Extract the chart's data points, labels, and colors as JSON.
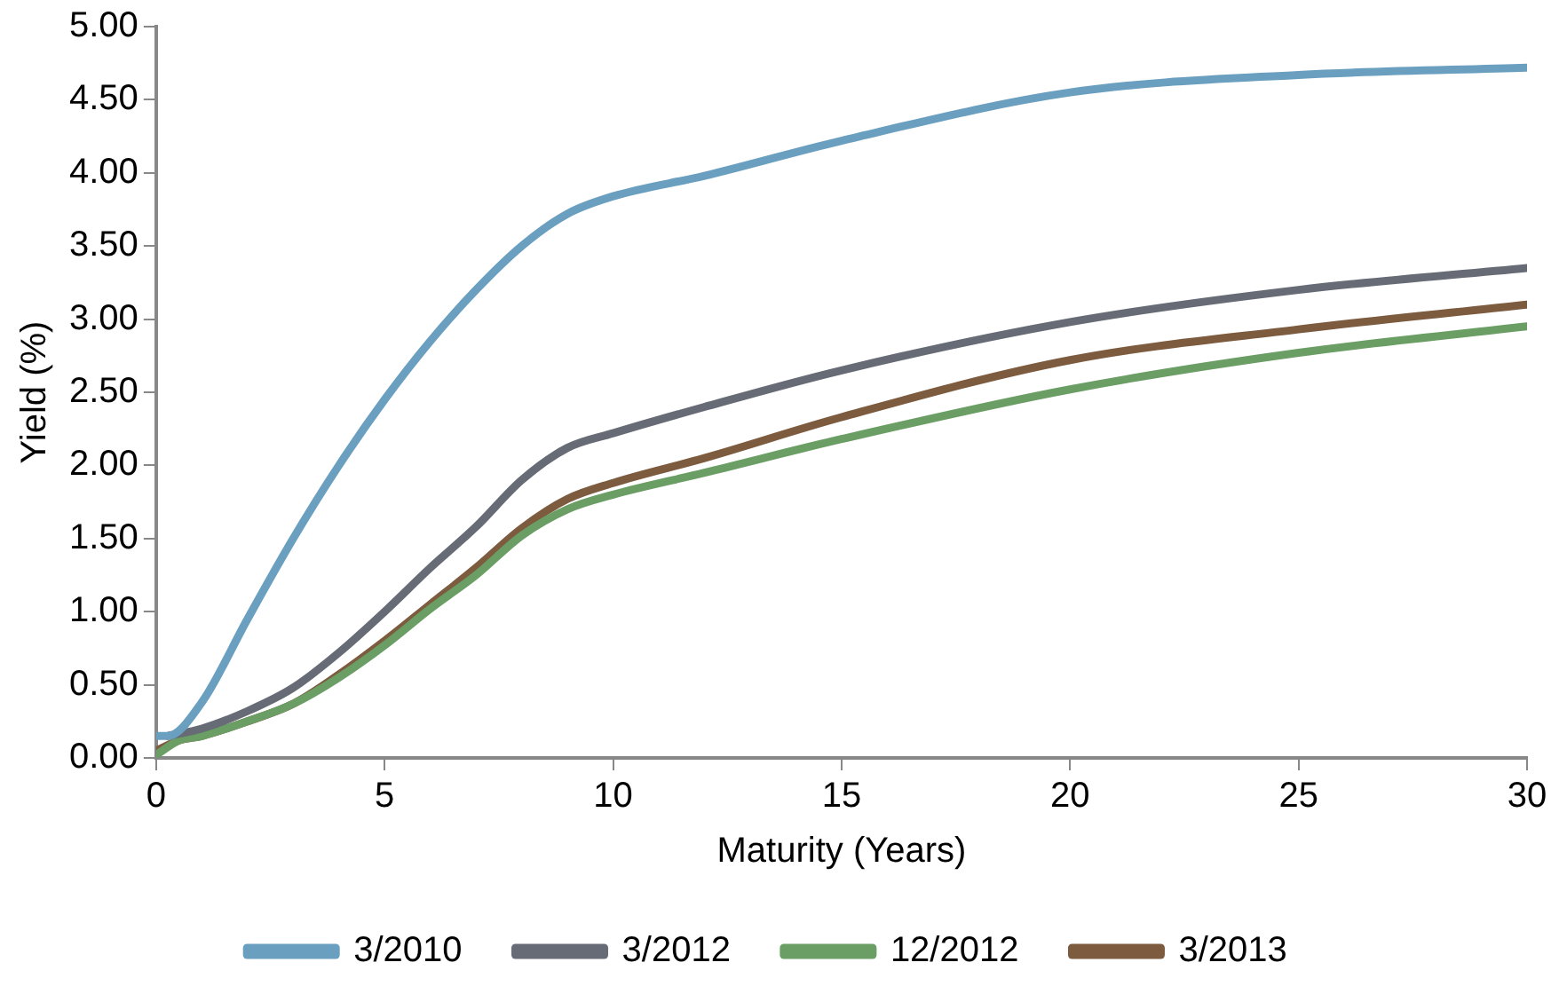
{
  "chart_data": {
    "type": "line",
    "xlabel": "Maturity (Years)",
    "ylabel": "Yield (%)",
    "xlim": [
      0,
      30
    ],
    "xticks": [
      0,
      5,
      10,
      15,
      20,
      25,
      30
    ],
    "ylim": [
      0,
      5
    ],
    "yticks": [
      {
        "value": 0,
        "label": "0.00"
      },
      {
        "value": 0.5,
        "label": "0.50"
      },
      {
        "value": 1,
        "label": "1.00"
      },
      {
        "value": 1.5,
        "label": "1.50"
      },
      {
        "value": 2,
        "label": "2.00"
      },
      {
        "value": 2.5,
        "label": "2.50"
      },
      {
        "value": 3,
        "label": "3.00"
      },
      {
        "value": 3.5,
        "label": "3.50"
      },
      {
        "value": 4,
        "label": "4.00"
      },
      {
        "value": 4.5,
        "label": "4.50"
      },
      {
        "value": 5,
        "label": "5.00"
      }
    ],
    "grid": false,
    "legend": "bottom",
    "marker": "none",
    "line_style": "solid",
    "series": [
      {
        "name": "3/2010",
        "color": "#6a9fc0",
        "x": [
          0,
          0.25,
          1,
          2,
          3,
          4,
          5,
          6,
          7,
          8,
          9,
          10,
          12,
          15,
          20,
          25,
          30
        ],
        "values": [
          0.15,
          0.15,
          0.38,
          0.95,
          1.5,
          2.0,
          2.45,
          2.85,
          3.2,
          3.5,
          3.72,
          3.84,
          3.98,
          4.22,
          4.55,
          4.67,
          4.72
        ]
      },
      {
        "name": "3/2012",
        "color": "#666b76",
        "x": [
          0.25,
          1,
          2,
          3,
          4,
          5,
          6,
          7,
          8,
          9,
          10,
          12,
          15,
          20,
          25,
          30
        ],
        "values": [
          0.15,
          0.2,
          0.32,
          0.48,
          0.72,
          1.0,
          1.3,
          1.58,
          1.9,
          2.12,
          2.22,
          2.4,
          2.65,
          2.98,
          3.2,
          3.35
        ]
      },
      {
        "name": "12/2012",
        "color": "#6a9e64",
        "x": [
          0,
          0.5,
          1,
          2,
          3,
          4,
          5,
          6,
          7,
          8,
          9,
          10,
          12,
          15,
          20,
          25,
          30
        ],
        "values": [
          0.02,
          0.12,
          0.15,
          0.25,
          0.37,
          0.55,
          0.77,
          1.02,
          1.25,
          1.52,
          1.7,
          1.8,
          1.95,
          2.18,
          2.52,
          2.77,
          2.95
        ]
      },
      {
        "name": "3/2013",
        "color": "#7c5b3f",
        "x": [
          0,
          0.5,
          1,
          2,
          3,
          4,
          5,
          6,
          7,
          8,
          9,
          10,
          12,
          15,
          20,
          25,
          30
        ],
        "values": [
          0.05,
          0.12,
          0.15,
          0.25,
          0.37,
          0.57,
          0.8,
          1.05,
          1.3,
          1.57,
          1.77,
          1.88,
          2.05,
          2.33,
          2.72,
          2.93,
          3.1
        ]
      }
    ]
  }
}
